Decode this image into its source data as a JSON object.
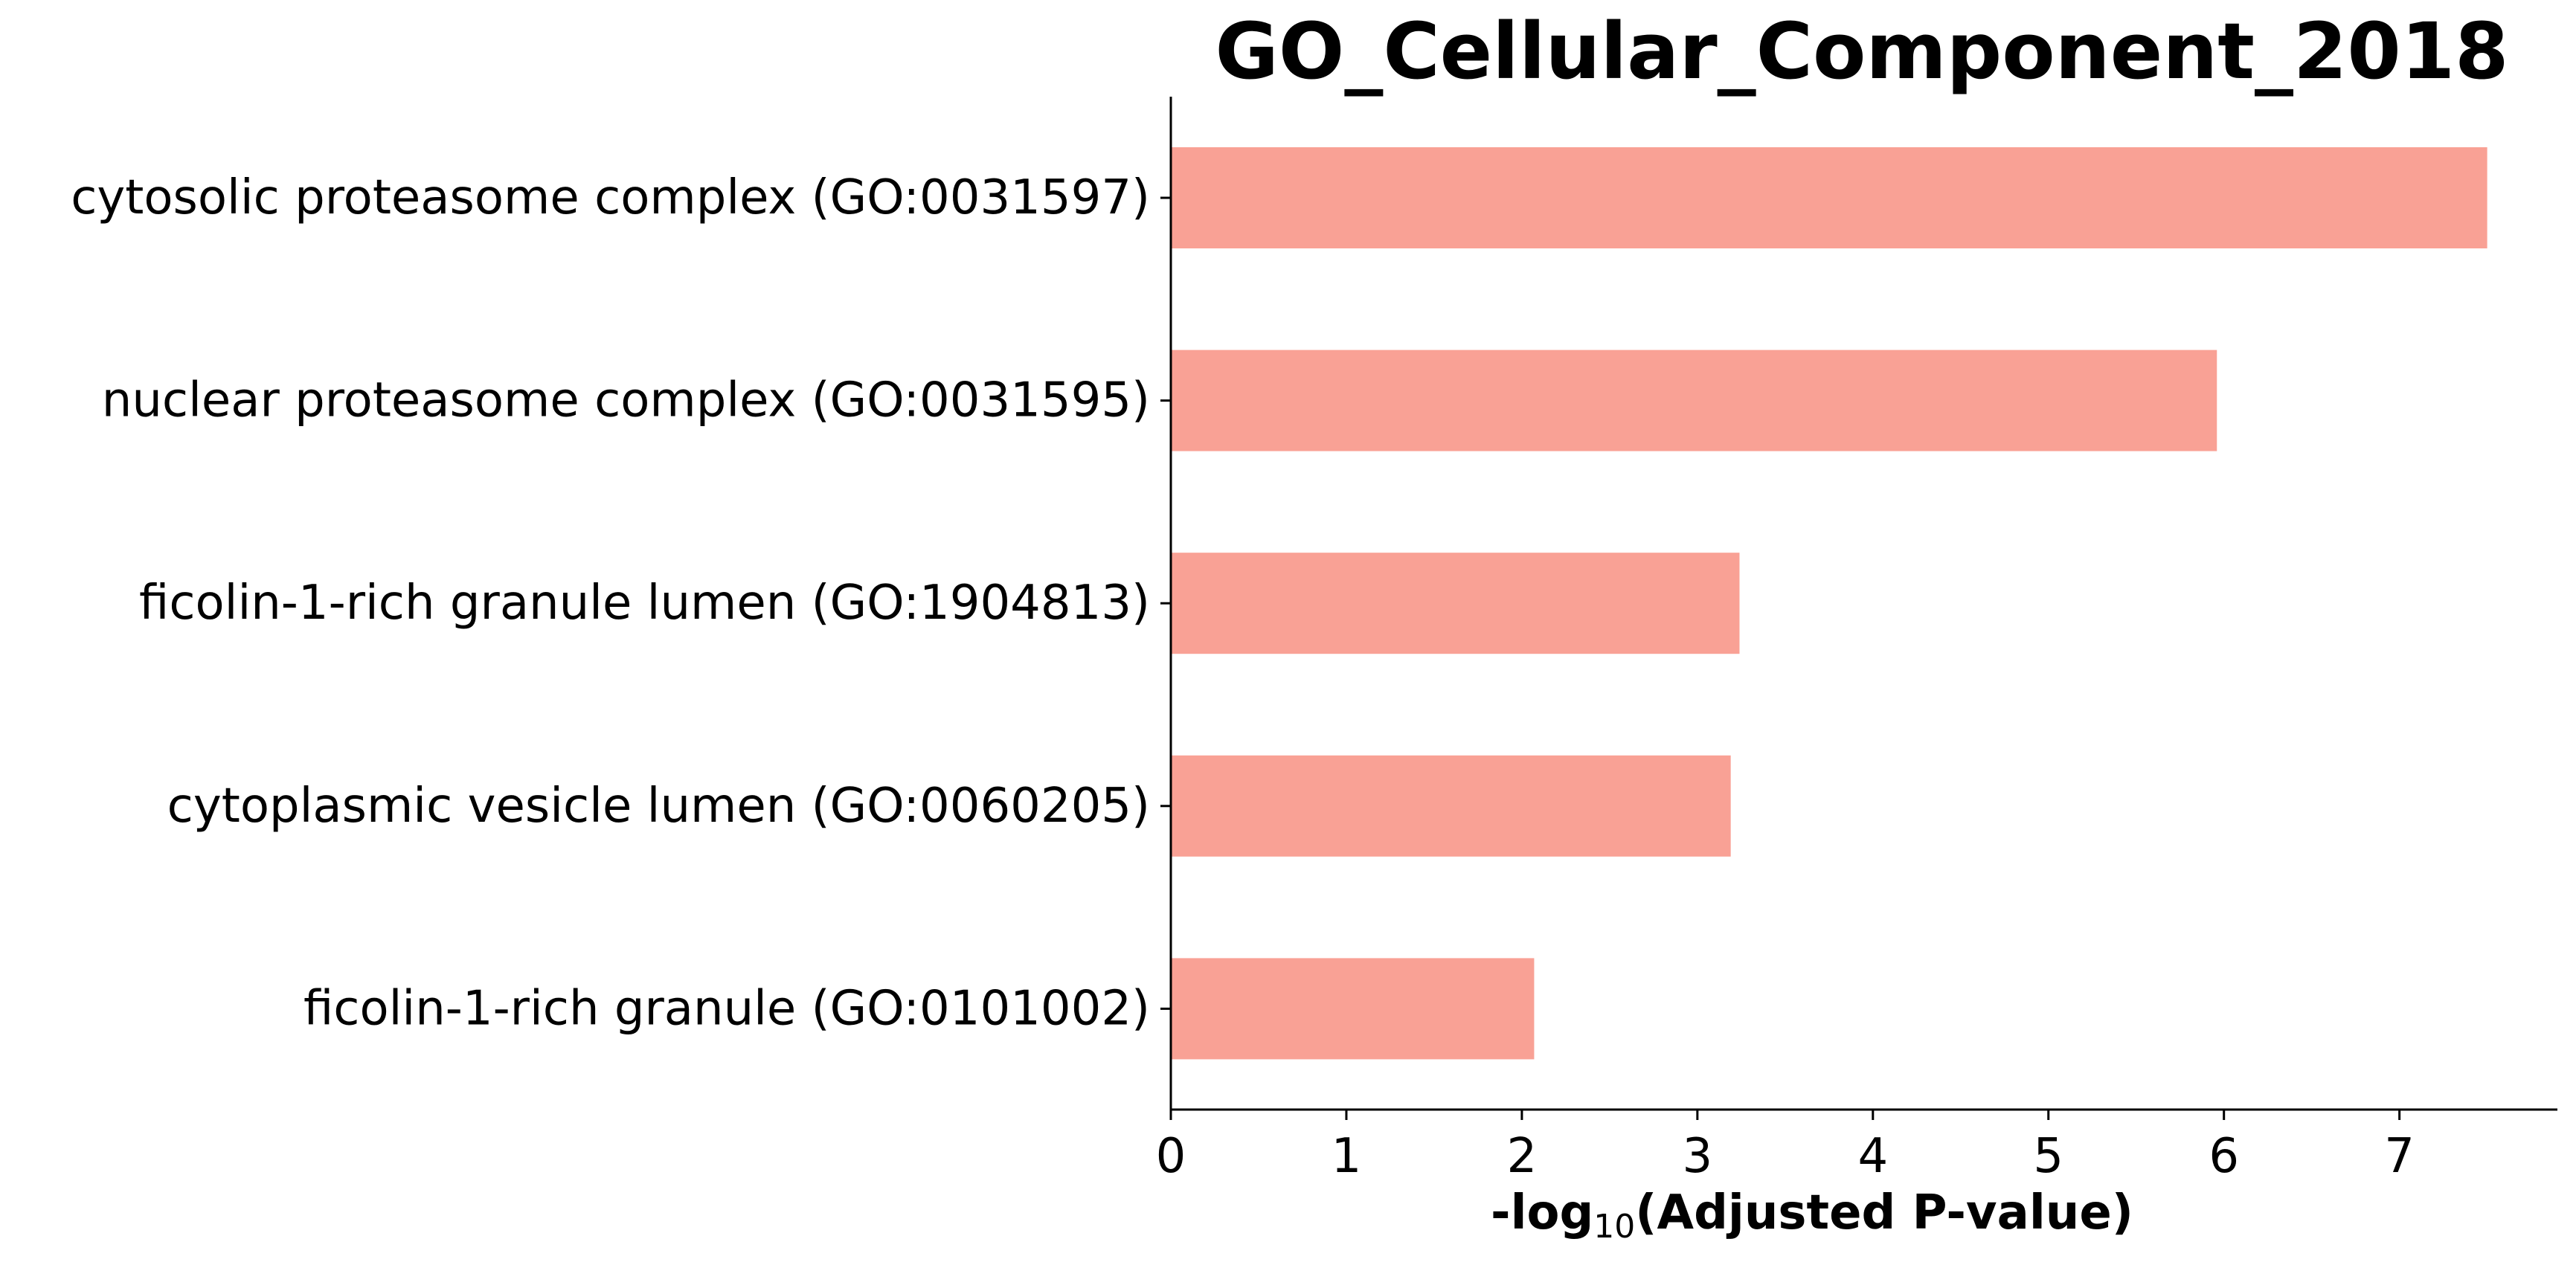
{
  "chart_data": {
    "type": "bar",
    "orientation": "horizontal",
    "title": "GO_Cellular_Component_2018",
    "xlabel": {
      "prefix": "-log",
      "subscript": "10",
      "suffix": "(Adjusted P-value)"
    },
    "ylabel": "",
    "categories": [
      "cytosolic proteasome complex (GO:0031597)",
      "nuclear proteasome complex (GO:0031595)",
      "ficolin-1-rich granule lumen (GO:1904813)",
      "cytoplasmic vesicle lumen (GO:0060205)",
      "ficolin-1-rich granule (GO:0101002)"
    ],
    "values": [
      7.5,
      5.96,
      3.24,
      3.19,
      2.07
    ],
    "xlim": [
      0,
      7.9
    ],
    "xticks": [
      "0",
      "1",
      "2",
      "3",
      "4",
      "5",
      "6",
      "7"
    ],
    "bar_color": "#f9a195",
    "grid": false,
    "legend": "none"
  }
}
